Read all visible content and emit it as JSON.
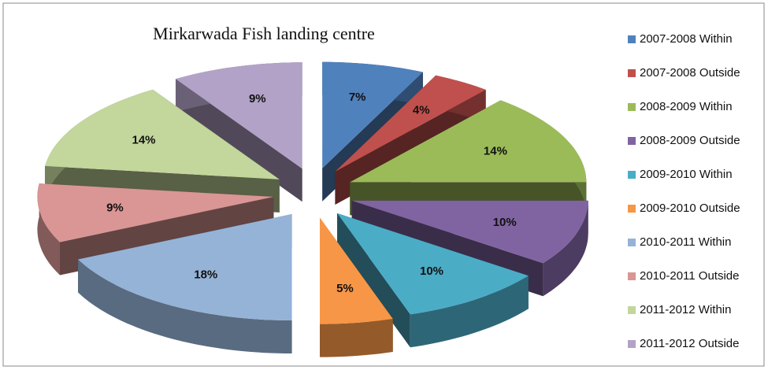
{
  "chart_data": {
    "type": "pie",
    "title": "Mirkarwada Fish landing centre",
    "categories": [
      "2007-2008 Within",
      "2007-2008 Outside",
      "2008-2009 Within",
      "2008-2009 Outside",
      "2009-2010 Within",
      "2009-2010 Outside",
      "2010-2011 Within",
      "2010-2011 Outside",
      "2011-2012 Within",
      "2011-2012 Outside"
    ],
    "values": [
      7,
      4,
      14,
      10,
      10,
      5,
      18,
      9,
      14,
      9
    ],
    "value_labels": [
      "7%",
      "4%",
      "14%",
      "10%",
      "10%",
      "5%",
      "18%",
      "9%",
      "14%",
      "9%"
    ],
    "colors": [
      "#4f81bd",
      "#c0504d",
      "#9bbb59",
      "#8064a2",
      "#4bacc6",
      "#f79646",
      "#95b3d7",
      "#d99694",
      "#c3d69b",
      "#b3a2c7"
    ],
    "legend": "right"
  }
}
